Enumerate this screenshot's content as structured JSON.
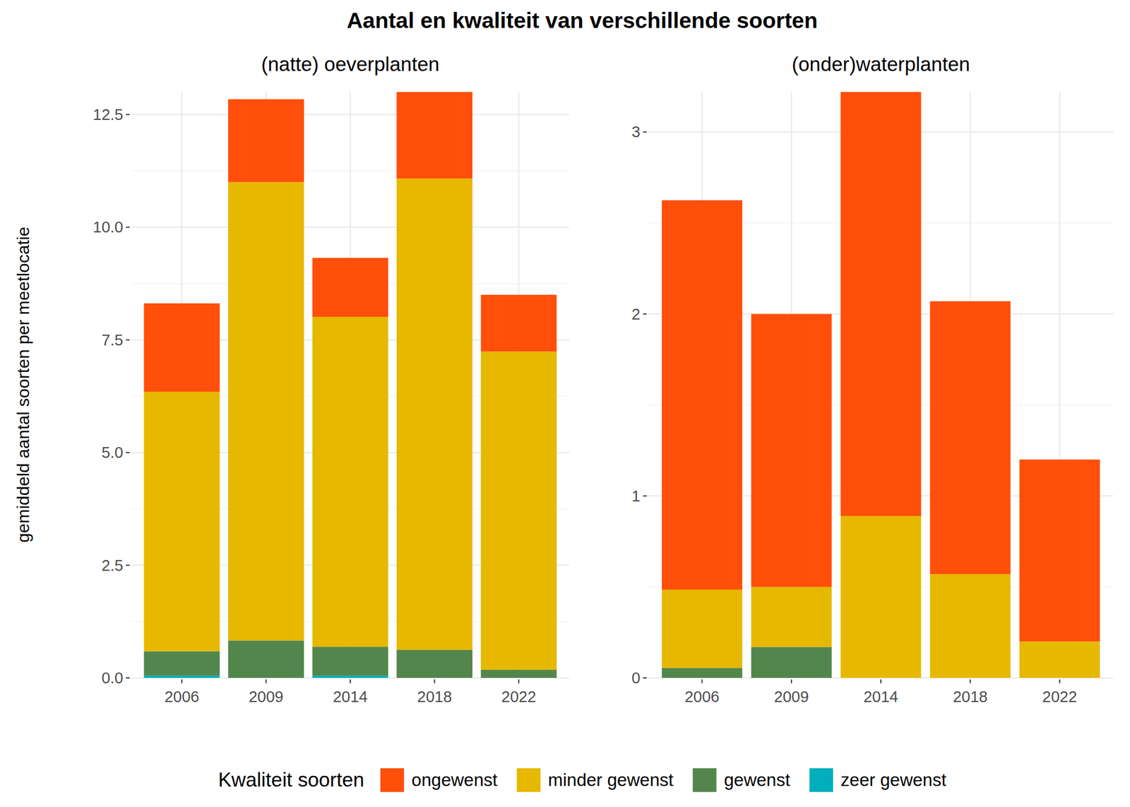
{
  "title": "Aantal en kwaliteit van verschillende soorten",
  "y_label": "gemiddeld aantal soorten per meetlocatie",
  "legend_title": "Kwaliteit soorten",
  "chart_data": [
    {
      "type": "bar",
      "title": "(natte) oeverplanten",
      "stacked": true,
      "grid": true,
      "legend": "bottom",
      "categories": [
        "2006",
        "2009",
        "2014",
        "2018",
        "2022"
      ],
      "ylim": [
        0,
        13.0
      ],
      "yticks": [
        {
          "value": 0,
          "label": "0.0"
        },
        2.5,
        {
          "value": 5,
          "label": "5.0"
        },
        7.5,
        {
          "value": 10,
          "label": "10.0"
        },
        12.5
      ],
      "series": [
        {
          "name": "ongewenst",
          "color": "#ff4f0a",
          "values": [
            1.96,
            1.84,
            1.31,
            1.92,
            1.26
          ]
        },
        {
          "name": "minder gewenst",
          "color": "#e6b800",
          "values": [
            5.76,
            10.17,
            7.32,
            10.46,
            7.06
          ]
        },
        {
          "name": "gewenst",
          "color": "#53864d",
          "values": [
            0.54,
            0.83,
            0.64,
            0.62,
            0.18
          ]
        },
        {
          "name": "zeer gewenst",
          "color": "#00afbb",
          "values": [
            0.05,
            0,
            0.05,
            0,
            0
          ]
        }
      ]
    },
    {
      "type": "bar",
      "title": "(onder)waterplanten",
      "stacked": true,
      "grid": true,
      "legend": "bottom",
      "categories": [
        "2006",
        "2009",
        "2014",
        "2018",
        "2022"
      ],
      "ylim": [
        0,
        3.22
      ],
      "yticks": [
        0,
        1,
        2,
        3
      ],
      "series": [
        {
          "name": "ongewenst",
          "color": "#ff4f0a",
          "values": [
            2.14,
            1.5,
            2.33,
            1.5,
            1.0
          ]
        },
        {
          "name": "minder gewenst",
          "color": "#e6b800",
          "values": [
            0.43,
            0.33,
            0.89,
            0.57,
            0.2
          ]
        },
        {
          "name": "gewenst",
          "color": "#53864d",
          "values": [
            0.055,
            0.17,
            0,
            0,
            0
          ]
        },
        {
          "name": "zeer gewenst",
          "color": "#00afbb",
          "values": [
            0,
            0,
            0,
            0,
            0
          ]
        }
      ]
    }
  ]
}
